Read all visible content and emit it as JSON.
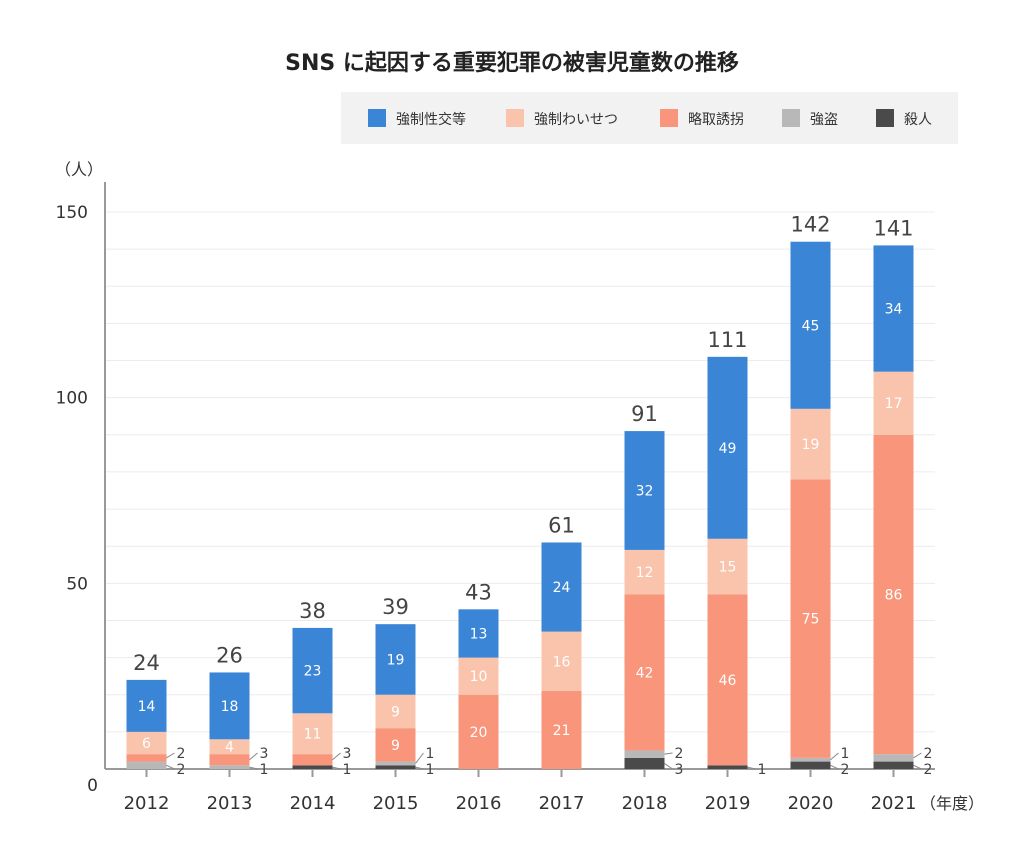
{
  "chart_data": {
    "type": "bar",
    "stacked": true,
    "title": "SNS に起因する重要犯罪の被害児童数の推移",
    "ylabel": "（人）",
    "xlabel": "（年度）",
    "ylim": [
      0,
      150
    ],
    "yticks": [
      0,
      50,
      100,
      150
    ],
    "grid": true,
    "legend_position": "top-right",
    "categories": [
      "2012",
      "2013",
      "2014",
      "2015",
      "2016",
      "2017",
      "2018",
      "2019",
      "2020",
      "2021"
    ],
    "series": [
      {
        "name": "殺人",
        "color": "#4a4a4a",
        "values": [
          0,
          0,
          1,
          1,
          0,
          0,
          3,
          1,
          2,
          2
        ]
      },
      {
        "name": "強盗",
        "color": "#b8b8b8",
        "values": [
          2,
          1,
          0,
          1,
          0,
          0,
          2,
          0,
          1,
          2
        ]
      },
      {
        "name": "略取誘拐",
        "color": "#f8957a",
        "values": [
          2,
          3,
          3,
          9,
          20,
          21,
          42,
          46,
          75,
          86
        ]
      },
      {
        "name": "強制わいせつ",
        "color": "#f9c3ac",
        "values": [
          6,
          4,
          11,
          9,
          10,
          16,
          12,
          15,
          19,
          17
        ]
      },
      {
        "name": "強制性交等",
        "color": "#3a85d6",
        "values": [
          14,
          18,
          23,
          19,
          13,
          24,
          32,
          49,
          45,
          34
        ]
      }
    ],
    "legend_order": [
      "強制性交等",
      "強制わいせつ",
      "略取誘拐",
      "強盗",
      "殺人"
    ],
    "totals": [
      24,
      26,
      38,
      39,
      43,
      61,
      91,
      111,
      142,
      141
    ]
  }
}
